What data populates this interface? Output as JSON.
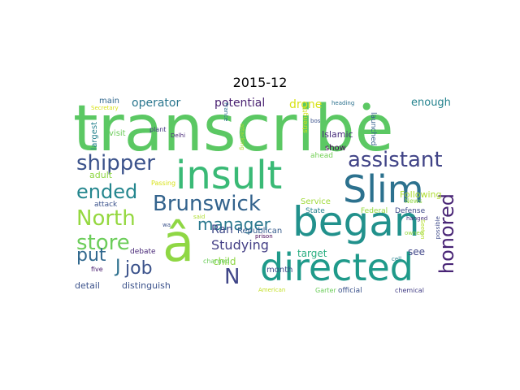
{
  "title": "2015-12",
  "words": [
    {
      "text": "transcribe",
      "color": "#5bc863"
    },
    {
      "text": "insult",
      "color": "#3aba76"
    },
    {
      "text": "began",
      "color": "#21918c"
    },
    {
      "text": "Slim",
      "color": "#2c718e"
    },
    {
      "text": "directed",
      "color": "#1f9a8a"
    },
    {
      "text": "â",
      "color": "#8fd744"
    },
    {
      "text": "Brunswick",
      "color": "#33638d"
    },
    {
      "text": "shipper",
      "color": "#3b528b"
    },
    {
      "text": "assistant",
      "color": "#414487"
    },
    {
      "text": "North",
      "color": "#95d840"
    },
    {
      "text": "store",
      "color": "#6ccd5a"
    },
    {
      "text": "ended",
      "color": "#24868e"
    },
    {
      "text": "honored",
      "color": "#482475"
    },
    {
      "text": "manager",
      "color": "#2a788e"
    },
    {
      "text": "put",
      "color": "#31688e"
    },
    {
      "text": "job",
      "color": "#3b528b"
    },
    {
      "text": "N",
      "color": "#404688"
    },
    {
      "text": "J",
      "color": "#2d708e"
    },
    {
      "text": "Studying",
      "color": "#433e85"
    },
    {
      "text": "potential",
      "color": "#481f70"
    },
    {
      "text": "operator",
      "color": "#2a768e"
    },
    {
      "text": "drone",
      "color": "#d8e219"
    },
    {
      "text": "enough",
      "color": "#25838e"
    },
    {
      "text": "Ran",
      "color": "#3e4989"
    },
    {
      "text": "Republican",
      "color": "#365c8d"
    },
    {
      "text": "Islamic",
      "color": "#472d7b"
    },
    {
      "text": "Following",
      "color": "#addc30"
    },
    {
      "text": "target",
      "color": "#28ae80"
    },
    {
      "text": "see",
      "color": "#404688"
    },
    {
      "text": "child",
      "color": "#8fd744"
    },
    {
      "text": "month",
      "color": "#3e4a89"
    },
    {
      "text": "adult",
      "color": "#8fd744"
    },
    {
      "text": "detail",
      "color": "#3b528b"
    },
    {
      "text": "distinguish",
      "color": "#3b528b"
    },
    {
      "text": "main",
      "color": "#31688e"
    },
    {
      "text": "visit",
      "color": "#6ccd5a"
    },
    {
      "text": "plant",
      "color": "#443983"
    },
    {
      "text": "Delhi",
      "color": "#482878"
    },
    {
      "text": "largest",
      "color": "#26828e"
    },
    {
      "text": "show",
      "color": "#440154"
    },
    {
      "text": "ahead",
      "color": "#73d056"
    },
    {
      "text": "strength",
      "color": "#d2e21b"
    },
    {
      "text": "launched",
      "color": "#355f8d"
    },
    {
      "text": "heading",
      "color": "#2c718e"
    },
    {
      "text": "bos",
      "color": "#3b528b"
    },
    {
      "text": "Service",
      "color": "#a0da39"
    },
    {
      "text": "State",
      "color": "#26828e"
    },
    {
      "text": "Federal",
      "color": "#95d840"
    },
    {
      "text": "Defense",
      "color": "#3e4a89"
    },
    {
      "text": "News",
      "color": "#8fd744"
    },
    {
      "text": "hanged",
      "color": "#46337e"
    },
    {
      "text": "possible",
      "color": "#3e4a89"
    },
    {
      "text": "owned",
      "color": "#95d840"
    },
    {
      "text": "cell",
      "color": "#26828e"
    },
    {
      "text": "prison",
      "color": "#440154"
    },
    {
      "text": "attack",
      "color": "#3b528b"
    },
    {
      "text": "debate",
      "color": "#482878"
    },
    {
      "text": "charged",
      "color": "#6ccd5a"
    },
    {
      "text": "five",
      "color": "#481c6e"
    },
    {
      "text": "said",
      "color": "#addc30"
    },
    {
      "text": "wa",
      "color": "#3b528b"
    },
    {
      "text": "Passing",
      "color": "#d8e219"
    },
    {
      "text": "American",
      "color": "#c2df23"
    },
    {
      "text": "Garter",
      "color": "#6ccd5a"
    },
    {
      "text": "official",
      "color": "#3b528b"
    },
    {
      "text": "chemical",
      "color": "#433e85"
    },
    {
      "text": "Secretary",
      "color": "#d8e219"
    },
    {
      "text": "France",
      "color": "#2c718e"
    },
    {
      "text": "attacking",
      "color": "#addc30"
    },
    {
      "text": "Seeton",
      "color": "#b5de2b"
    }
  ]
}
